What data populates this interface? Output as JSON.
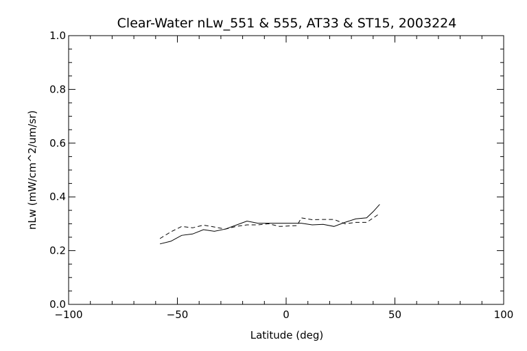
{
  "chart_data": {
    "type": "line",
    "title": "Clear-Water nLw_551 & 555, AT33 & ST15, 2003224",
    "xlabel": "Latitude (deg)",
    "ylabel": "nLw (mW/cm^2/um/sr)",
    "xlim": [
      -100,
      100
    ],
    "ylim": [
      0.0,
      1.0
    ],
    "xticks": [
      -100,
      -50,
      0,
      50,
      100
    ],
    "xtick_labels": [
      "−100",
      "−50",
      "0",
      "50",
      "100"
    ],
    "yticks": [
      0.0,
      0.2,
      0.4,
      0.6,
      0.8,
      1.0
    ],
    "ytick_labels": [
      "0.0",
      "0.2",
      "0.4",
      "0.6",
      "0.8",
      "1.0"
    ],
    "grid": false,
    "series": [
      {
        "style": "solid",
        "color": "#000000",
        "x": [
          -58,
          -53,
          -48,
          -43,
          -38,
          -33,
          -28,
          -23,
          -18,
          -13,
          -8,
          -3,
          2,
          7,
          12,
          17,
          22,
          27,
          32,
          37,
          40,
          43
        ],
        "y": [
          0.225,
          0.235,
          0.257,
          0.262,
          0.278,
          0.272,
          0.28,
          0.295,
          0.31,
          0.302,
          0.302,
          0.302,
          0.302,
          0.302,
          0.296,
          0.298,
          0.29,
          0.305,
          0.318,
          0.322,
          0.345,
          0.372
        ]
      },
      {
        "style": "dashed",
        "color": "#000000",
        "x": [
          -58,
          -53,
          -48,
          -43,
          -38,
          -33,
          -28,
          -23,
          -18,
          -13,
          -8,
          -3,
          2,
          5,
          7,
          12,
          17,
          22,
          27,
          32,
          37,
          43
        ],
        "y": [
          0.245,
          0.27,
          0.29,
          0.285,
          0.295,
          0.288,
          0.28,
          0.29,
          0.296,
          0.296,
          0.3,
          0.29,
          0.292,
          0.293,
          0.322,
          0.315,
          0.316,
          0.316,
          0.3,
          0.305,
          0.305,
          0.338
        ]
      }
    ]
  }
}
